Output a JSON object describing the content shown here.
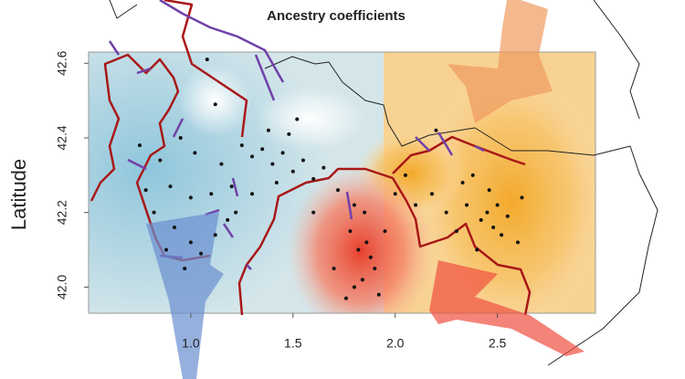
{
  "chart_data": {
    "type": "scatter",
    "title": "Ancestry coefficients",
    "y_label": "Latitude",
    "color": "#111111",
    "grid": false,
    "xlim": [
      0.5,
      2.98
    ],
    "ylim": [
      41.93,
      42.63
    ],
    "xticks": [
      {
        "value": 1,
        "label": "1.0"
      },
      1.5,
      {
        "value": 2,
        "label": "2.0"
      },
      2.5
    ],
    "yticks": [
      {
        "value": 42,
        "label": "42.0"
      },
      42.2,
      42.4,
      42.6
    ],
    "x": [
      1.08,
      1.12,
      0.75,
      0.85,
      0.95,
      1.02,
      1.15,
      1.25,
      0.9,
      1.0,
      1.1,
      1.2,
      0.82,
      0.92,
      1.0,
      1.05,
      1.12,
      1.18,
      0.88,
      0.97,
      1.3,
      1.35,
      1.4,
      1.45,
      1.5,
      1.42,
      1.55,
      1.6,
      1.38,
      1.48,
      1.3,
      1.65,
      1.72,
      1.8,
      1.78,
      1.82,
      1.86,
      1.88,
      1.9,
      1.84,
      1.8,
      1.92,
      1.76,
      1.95,
      1.7,
      1.85,
      2.0,
      2.05,
      2.1,
      2.18,
      2.25,
      2.3,
      2.35,
      2.42,
      2.45,
      2.48,
      2.5,
      2.52,
      2.55,
      2.6,
      2.62,
      2.4,
      2.46,
      2.33,
      2.2,
      2.38,
      1.52,
      1.22,
      0.78,
      1.6
    ],
    "y": [
      42.61,
      42.49,
      42.38,
      42.34,
      42.4,
      42.36,
      42.33,
      42.38,
      42.27,
      42.24,
      42.25,
      42.27,
      42.2,
      42.16,
      42.12,
      42.09,
      42.14,
      42.18,
      42.1,
      42.05,
      42.35,
      42.37,
      42.33,
      42.36,
      42.31,
      42.28,
      42.34,
      42.29,
      42.42,
      42.41,
      42.25,
      42.32,
      42.26,
      42.22,
      42.15,
      42.1,
      42.12,
      42.08,
      42.05,
      42.02,
      42.0,
      41.98,
      41.97,
      42.15,
      42.05,
      42.2,
      42.25,
      42.3,
      42.22,
      42.25,
      42.2,
      42.15,
      42.22,
      42.18,
      42.2,
      42.16,
      42.22,
      42.14,
      42.19,
      42.12,
      42.24,
      42.1,
      42.26,
      42.28,
      42.42,
      42.3,
      42.45,
      42.2,
      42.26,
      42.2
    ]
  }
}
